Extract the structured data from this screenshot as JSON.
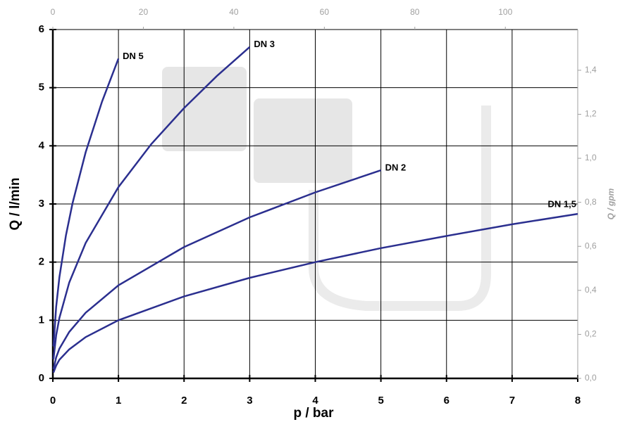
{
  "chart_data": {
    "type": "line",
    "xlabel": "p / bar",
    "ylabel": "Q / l/min",
    "y2label": "Q / gpm",
    "xlim": [
      0,
      8
    ],
    "xticks": [
      0,
      1,
      2,
      3,
      4,
      5,
      6,
      7,
      8
    ],
    "ylim": [
      0,
      6
    ],
    "yticks": [
      0,
      1,
      2,
      3,
      4,
      5,
      6
    ],
    "x2lim": [
      0,
      116
    ],
    "x2ticks": [
      0,
      20,
      40,
      60,
      80,
      100
    ],
    "y2lim": [
      0,
      1.585
    ],
    "y2ticks": [
      {
        "value": 0,
        "label": "0,0"
      },
      {
        "value": 0.2,
        "label": "0,2"
      },
      {
        "value": 0.4,
        "label": "0,4"
      },
      {
        "value": 0.6,
        "label": "0,6"
      },
      {
        "value": 0.8,
        "label": "0,8"
      },
      {
        "value": 1.0,
        "label": "1,0"
      },
      {
        "value": 1.2,
        "label": "1,2"
      },
      {
        "value": 1.4,
        "label": "1,4"
      }
    ],
    "grid": true,
    "series": [
      {
        "name": "DN 5",
        "color": "#2b2f8f",
        "x": [
          0.01,
          0.05,
          0.1,
          0.2,
          0.3,
          0.5,
          0.75,
          1
        ],
        "values": [
          0.55,
          1.23,
          1.74,
          2.46,
          3.01,
          3.89,
          4.76,
          5.5
        ]
      },
      {
        "name": "DN 3",
        "color": "#2b2f8f",
        "x": [
          0.01,
          0.05,
          0.1,
          0.25,
          0.5,
          1,
          1.5,
          2,
          2.5,
          3
        ],
        "values": [
          0.33,
          0.74,
          1.04,
          1.65,
          2.33,
          3.29,
          4.03,
          4.65,
          5.2,
          5.7
        ]
      },
      {
        "name": "DN 2",
        "color": "#2b2f8f",
        "x": [
          0.01,
          0.05,
          0.1,
          0.25,
          0.5,
          1,
          2,
          3,
          4,
          5
        ],
        "values": [
          0.16,
          0.36,
          0.51,
          0.8,
          1.13,
          1.6,
          2.26,
          2.77,
          3.2,
          3.58
        ]
      },
      {
        "name": "DN 1,5",
        "color": "#2b2f8f",
        "x": [
          0.01,
          0.05,
          0.1,
          0.25,
          0.5,
          1,
          2,
          3,
          4,
          5,
          6,
          7,
          8
        ],
        "values": [
          0.1,
          0.22,
          0.32,
          0.5,
          0.71,
          1,
          1.41,
          1.73,
          2,
          2.24,
          2.45,
          2.65,
          2.83
        ]
      }
    ]
  }
}
